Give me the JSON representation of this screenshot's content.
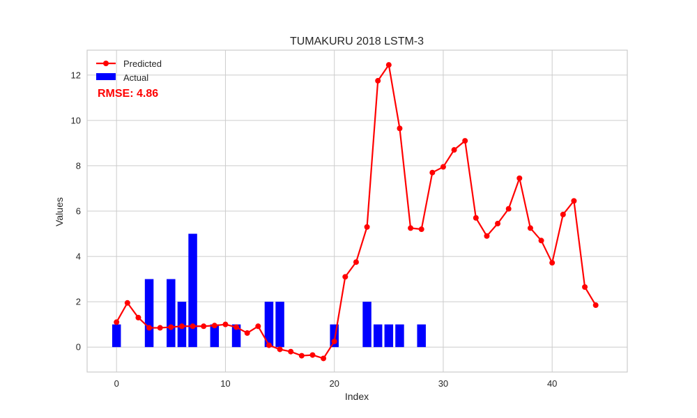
{
  "chart_data": {
    "type": "bar",
    "title": "TUMAKURU 2018 LSTM-3",
    "xlabel": "Index",
    "ylabel": "Values",
    "xlim": [
      -2.7,
      46.9
    ],
    "ylim": [
      -1.1,
      13.1
    ],
    "xticks": [
      0,
      10,
      20,
      30,
      40
    ],
    "yticks": [
      0,
      2,
      4,
      6,
      8,
      10,
      12
    ],
    "grid": true,
    "legend_position": "top-left",
    "annotation": "RMSE: 4.86",
    "series": [
      {
        "name": "Actual",
        "type": "bar",
        "color": "#0000ff",
        "x": [
          0,
          1,
          2,
          3,
          4,
          5,
          6,
          7,
          8,
          9,
          10,
          11,
          12,
          13,
          14,
          15,
          16,
          17,
          18,
          19,
          20,
          21,
          22,
          23,
          24,
          25,
          26,
          27,
          28
        ],
        "values": [
          1,
          0,
          0,
          3,
          0,
          3,
          2,
          5,
          0,
          1,
          0,
          1,
          0,
          0,
          2,
          2,
          0,
          0,
          0,
          0,
          1,
          0,
          0,
          2,
          1,
          1,
          1,
          0,
          1
        ]
      },
      {
        "name": "Predicted",
        "type": "line",
        "color": "#ff0000",
        "x": [
          0,
          1,
          2,
          3,
          4,
          5,
          6,
          7,
          8,
          9,
          10,
          11,
          12,
          13,
          14,
          15,
          16,
          17,
          18,
          19,
          20,
          21,
          22,
          23,
          24,
          25,
          26,
          27,
          28,
          29,
          30,
          31,
          32,
          33,
          34,
          35,
          36,
          37,
          38,
          39,
          40,
          41,
          42,
          43,
          44
        ],
        "values": [
          1.1,
          1.95,
          1.3,
          0.85,
          0.85,
          0.88,
          0.92,
          0.92,
          0.92,
          0.95,
          1.0,
          0.88,
          0.62,
          0.92,
          0.08,
          -0.1,
          -0.2,
          -0.38,
          -0.35,
          -0.5,
          0.25,
          3.1,
          3.75,
          5.3,
          11.75,
          12.45,
          9.65,
          5.25,
          5.2,
          7.7,
          7.95,
          8.7,
          9.1,
          5.7,
          4.9,
          5.45,
          6.1,
          7.45,
          5.25,
          4.7,
          3.72,
          5.85,
          6.45,
          2.65,
          1.85
        ]
      }
    ]
  }
}
